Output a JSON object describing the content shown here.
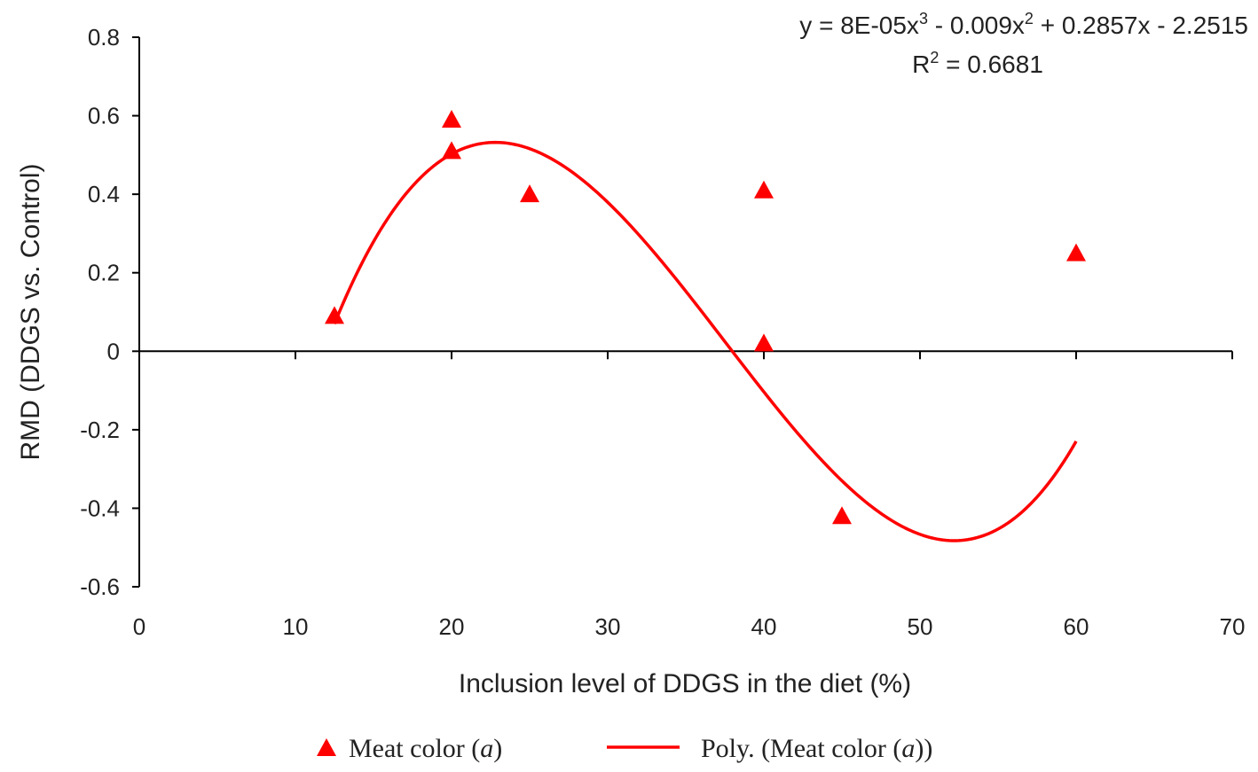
{
  "chart_data": {
    "type": "scatter",
    "title": "",
    "xlabel": "Inclusion level of DDGS in the diet (%)",
    "ylabel": "RMD (DDGS vs. Control)",
    "xlim": [
      0,
      70
    ],
    "ylim": [
      -0.6,
      0.8
    ],
    "x_ticks": [
      0,
      10,
      20,
      30,
      40,
      50,
      60,
      70
    ],
    "y_ticks": [
      0.8,
      0.6,
      0.4,
      0.2,
      0,
      -0.2,
      -0.4,
      -0.6
    ],
    "x_tick_labels": [
      "0",
      "10",
      "20",
      "30",
      "40",
      "50",
      "60",
      "70"
    ],
    "y_tick_labels": [
      "0.8",
      "0.6",
      "0.4",
      "0.2",
      "0",
      "-0.2",
      "-0.4",
      "-0.6"
    ],
    "grid": false,
    "series": [
      {
        "name": "Meat color (a)",
        "marker": "triangle",
        "color": "#ff0000",
        "points": [
          {
            "x": 12.5,
            "y": 0.09
          },
          {
            "x": 20,
            "y": 0.59
          },
          {
            "x": 20,
            "y": 0.51
          },
          {
            "x": 25,
            "y": 0.4
          },
          {
            "x": 40,
            "y": 0.41
          },
          {
            "x": 40,
            "y": 0.02
          },
          {
            "x": 45,
            "y": -0.42
          },
          {
            "x": 60,
            "y": 0.25
          }
        ]
      }
    ],
    "trendline": {
      "name": "Poly. (Meat color (a))",
      "type": "polynomial",
      "order": 3,
      "color": "#ff0000",
      "coefficients": [
        8e-05,
        -0.009,
        0.2857,
        -2.2515
      ],
      "x_range": [
        12.5,
        60
      ]
    },
    "annotations": {
      "equation_main": "y = 8E-05x",
      "equation_sup1": "3",
      "equation_mid": " - 0.009x",
      "equation_sup2": "2",
      "equation_end": " + 0.2857x - 2.2515",
      "r2_label": "R",
      "r2_sup": "2",
      "r2_value": " = 0.6681"
    },
    "legend": {
      "position": "bottom",
      "marker_label_main": "Meat color (",
      "marker_label_italic": "a",
      "marker_label_end": ")",
      "line_label_main": "Poly. (Meat color (",
      "line_label_italic": "a",
      "line_label_end": "))"
    }
  }
}
